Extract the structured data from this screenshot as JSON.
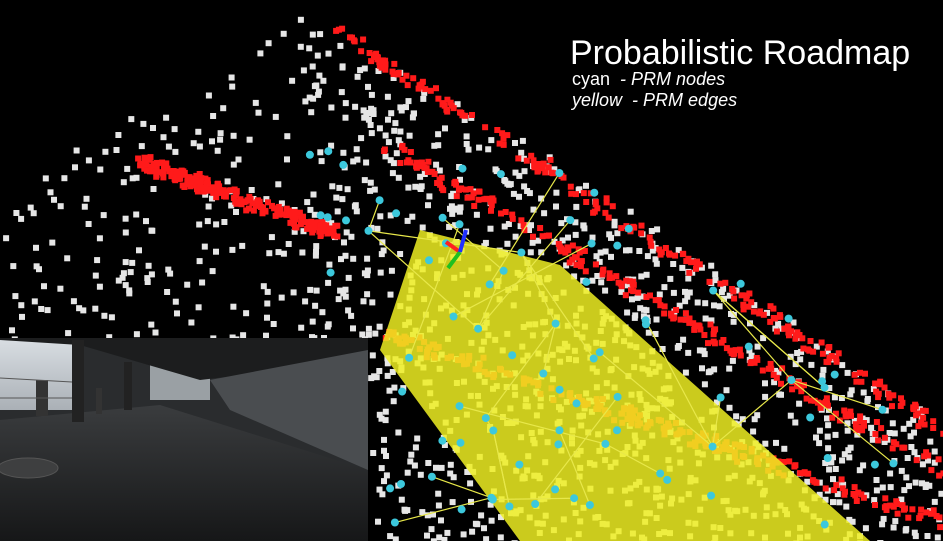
{
  "overlay": {
    "title": "Probabilistic Roadmap",
    "legend": [
      {
        "color_word": "cyan",
        "description": "- PRM nodes"
      },
      {
        "color_word": "yellow",
        "description": "- PRM edges"
      }
    ]
  }
}
